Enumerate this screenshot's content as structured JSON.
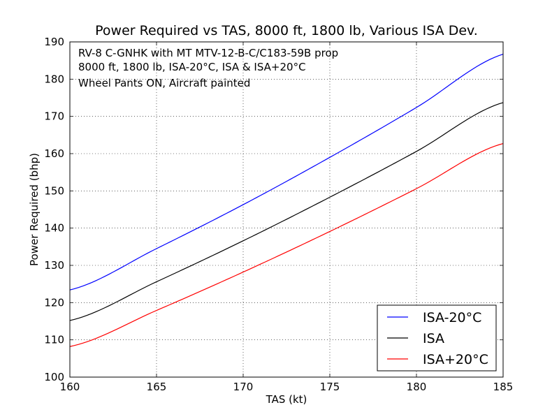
{
  "chart_data": {
    "type": "line",
    "title": "Power Required vs TAS, 8000 ft, 1800 lb, Various ISA Dev.",
    "xlabel": "TAS (kt)",
    "ylabel": "Power Required (bhp)",
    "xlim": [
      160,
      185
    ],
    "ylim": [
      100,
      190
    ],
    "xticks": [
      160,
      165,
      170,
      175,
      180,
      185
    ],
    "yticks": [
      100,
      110,
      120,
      130,
      140,
      150,
      160,
      170,
      180,
      190
    ],
    "grid": true,
    "annotation_lines": [
      "RV-8 C-GNHK with MT MTV-12-B-C/C183-59B prop",
      "8000 ft, 1800 lb, ISA-20°C, ISA & ISA+20°C",
      "Wheel Pants ON, Aircraft painted"
    ],
    "legend_position": "lower-right",
    "x": [
      160,
      165,
      170,
      175,
      180,
      185
    ],
    "series": [
      {
        "name": "ISA-20°C",
        "color": "#0000ff",
        "values": [
          123.4,
          134.5,
          146.3,
          159.0,
          172.4,
          186.7
        ]
      },
      {
        "name": "ISA",
        "color": "#000000",
        "values": [
          115.2,
          125.6,
          136.6,
          148.3,
          160.6,
          173.7
        ]
      },
      {
        "name": "ISA+20°C",
        "color": "#ff0000",
        "values": [
          108.2,
          117.9,
          128.2,
          139.1,
          150.6,
          162.7
        ]
      }
    ]
  }
}
